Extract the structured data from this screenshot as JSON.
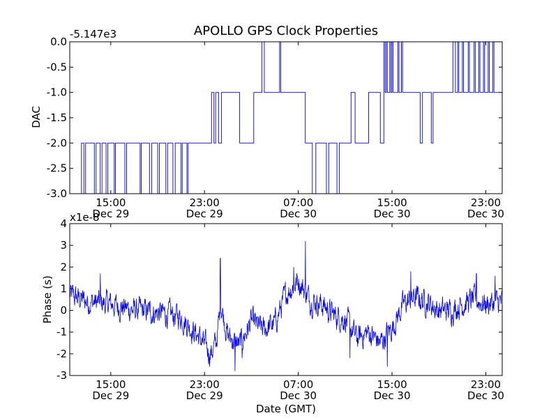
{
  "chart_data": [
    {
      "type": "line",
      "title": "APOLLO GPS Clock Properties",
      "offset_text": "-5.147e3",
      "ylabel": "DAC",
      "xlabel": "",
      "ylim": [
        -3.0,
        0.0
      ],
      "yticks": [
        "0.0",
        "-0.5",
        "-1.0",
        "-1.5",
        "-2.0",
        "-2.5",
        "-3.0"
      ],
      "ytick_values": [
        0.0,
        -0.5,
        -1.0,
        -1.5,
        -2.0,
        -2.5,
        -3.0
      ],
      "xlim_hours": [
        11.5,
        48.4
      ],
      "xticks": [
        {
          "hour": 15,
          "time": "15:00",
          "date": "Dec 29"
        },
        {
          "hour": 23,
          "time": "23:00",
          "date": "Dec 29"
        },
        {
          "hour": 31,
          "time": "07:00",
          "date": "Dec 30"
        },
        {
          "hour": 39,
          "time": "15:00",
          "date": "Dec 30"
        },
        {
          "hour": 47,
          "time": "23:00",
          "date": "Dec 30"
        }
      ],
      "line_color": "#0000ff",
      "series": [
        {
          "steps": [
            [
              11.5,
              -3.0
            ],
            [
              12.5,
              -2.0
            ],
            [
              12.7,
              -3.0
            ],
            [
              12.85,
              -2.0
            ],
            [
              13.6,
              -3.0
            ],
            [
              13.75,
              -2.0
            ],
            [
              14.1,
              -3.0
            ],
            [
              14.25,
              -2.0
            ],
            [
              14.6,
              -3.0
            ],
            [
              14.75,
              -2.0
            ],
            [
              15.3,
              -3.0
            ],
            [
              15.4,
              -2.0
            ],
            [
              16.2,
              -3.0
            ],
            [
              16.35,
              -2.0
            ],
            [
              17.5,
              -3.0
            ],
            [
              17.6,
              -2.0
            ],
            [
              18.3,
              -3.0
            ],
            [
              18.5,
              -2.0
            ],
            [
              19.0,
              -3.0
            ],
            [
              19.15,
              -2.0
            ],
            [
              19.7,
              -3.0
            ],
            [
              19.85,
              -2.0
            ],
            [
              20.3,
              -3.0
            ],
            [
              20.5,
              -2.0
            ],
            [
              21.0,
              -3.0
            ],
            [
              21.1,
              -2.0
            ],
            [
              21.5,
              -3.0
            ],
            [
              21.6,
              -2.0
            ],
            [
              23.6,
              -1.0
            ],
            [
              23.8,
              -2.0
            ],
            [
              23.95,
              -1.0
            ],
            [
              24.2,
              -2.0
            ],
            [
              24.45,
              -1.0
            ],
            [
              26.0,
              -2.0
            ],
            [
              27.2,
              -1.0
            ],
            [
              27.9,
              0.0
            ],
            [
              28.1,
              -1.0
            ],
            [
              29.4,
              0.0
            ],
            [
              29.5,
              -1.0
            ],
            [
              31.6,
              -2.0
            ],
            [
              32.2,
              -3.0
            ],
            [
              32.5,
              -2.0
            ],
            [
              33.4,
              -3.0
            ],
            [
              33.6,
              -2.0
            ],
            [
              34.3,
              -3.0
            ],
            [
              34.5,
              -2.0
            ],
            [
              35.5,
              -1.0
            ],
            [
              35.85,
              -2.0
            ],
            [
              37.0,
              -1.0
            ],
            [
              38.0,
              -2.0
            ],
            [
              38.3,
              0.0
            ],
            [
              38.4,
              -1.0
            ],
            [
              38.5,
              0.0
            ],
            [
              38.6,
              -1.0
            ],
            [
              38.8,
              0.0
            ],
            [
              38.9,
              -1.0
            ],
            [
              39.0,
              0.0
            ],
            [
              39.1,
              -1.0
            ],
            [
              39.5,
              0.0
            ],
            [
              39.6,
              -1.0
            ],
            [
              39.8,
              0.0
            ],
            [
              39.9,
              -1.0
            ],
            [
              41.4,
              -2.0
            ],
            [
              41.6,
              -1.0
            ],
            [
              42.35,
              -2.0
            ],
            [
              42.5,
              -1.0
            ],
            [
              44.2,
              0.0
            ],
            [
              44.4,
              -1.0
            ],
            [
              44.6,
              0.0
            ],
            [
              44.7,
              -1.0
            ],
            [
              45.0,
              0.0
            ],
            [
              45.1,
              -1.0
            ],
            [
              45.5,
              0.0
            ],
            [
              45.6,
              -1.0
            ],
            [
              46.0,
              0.0
            ],
            [
              46.1,
              -1.0
            ],
            [
              46.4,
              0.0
            ],
            [
              46.5,
              -1.0
            ],
            [
              46.8,
              0.0
            ],
            [
              46.9,
              -1.0
            ],
            [
              47.2,
              0.0
            ],
            [
              47.3,
              -1.0
            ],
            [
              47.6,
              0.0
            ],
            [
              47.7,
              -1.0
            ],
            [
              48.4,
              -1.0
            ]
          ]
        }
      ]
    },
    {
      "type": "line",
      "title": "",
      "offset_text": "x1e-8",
      "ylabel": "Phase (s)",
      "xlabel": "Date (GMT)",
      "ylim": [
        -3,
        4
      ],
      "yticks": [
        "4",
        "3",
        "2",
        "1",
        "0",
        "-1",
        "-2",
        "-3"
      ],
      "ytick_values": [
        4,
        3,
        2,
        1,
        0,
        -1,
        -2,
        -3
      ],
      "xlim_hours": [
        11.5,
        48.4
      ],
      "xticks": [
        {
          "hour": 15,
          "time": "15:00",
          "date": "Dec 29"
        },
        {
          "hour": 23,
          "time": "23:00",
          "date": "Dec 29"
        },
        {
          "hour": 31,
          "time": "07:00",
          "date": "Dec 30"
        },
        {
          "hour": 39,
          "time": "15:00",
          "date": "Dec 30"
        },
        {
          "hour": 47,
          "time": "23:00",
          "date": "Dec 30"
        }
      ],
      "line_color": "#0000ff",
      "series": [
        {
          "trend": [
            [
              11.5,
              0.7
            ],
            [
              13.0,
              0.4
            ],
            [
              15.0,
              0.3
            ],
            [
              17.0,
              0.0
            ],
            [
              19.0,
              -0.1
            ],
            [
              21.0,
              -0.3
            ],
            [
              22.5,
              -1.2
            ],
            [
              23.5,
              -2.0
            ],
            [
              24.0,
              -1.5
            ],
            [
              24.4,
              0.3
            ],
            [
              25.0,
              -1.2
            ],
            [
              26.0,
              -1.6
            ],
            [
              27.0,
              -0.5
            ],
            [
              28.0,
              -0.9
            ],
            [
              29.0,
              -0.6
            ],
            [
              30.0,
              0.8
            ],
            [
              31.0,
              1.4
            ],
            [
              32.0,
              0.5
            ],
            [
              33.0,
              0.3
            ],
            [
              34.0,
              -0.2
            ],
            [
              35.0,
              -0.4
            ],
            [
              36.0,
              -1.3
            ],
            [
              37.0,
              -1.0
            ],
            [
              38.0,
              -1.5
            ],
            [
              39.0,
              -0.8
            ],
            [
              40.0,
              0.3
            ],
            [
              41.0,
              0.6
            ],
            [
              42.0,
              0.4
            ],
            [
              43.0,
              0.0
            ],
            [
              44.0,
              0.0
            ],
            [
              45.0,
              0.3
            ],
            [
              46.0,
              0.5
            ],
            [
              47.0,
              0.3
            ],
            [
              48.4,
              0.4
            ]
          ],
          "noise_amplitude": 0.55,
          "spikes": [
            [
              14.1,
              1.7
            ],
            [
              24.35,
              2.4
            ],
            [
              25.6,
              -2.8
            ],
            [
              26.2,
              -2.2
            ],
            [
              30.6,
              2.0
            ],
            [
              31.6,
              3.2
            ],
            [
              35.4,
              -2.2
            ],
            [
              38.6,
              -2.6
            ],
            [
              40.6,
              1.8
            ],
            [
              46.2,
              1.7
            ],
            [
              47.8,
              1.6
            ]
          ]
        }
      ]
    }
  ]
}
